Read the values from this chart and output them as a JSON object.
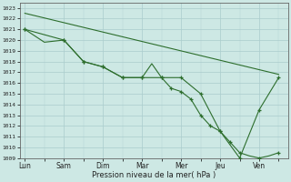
{
  "xlabel": "Pression niveau de la mer( hPa )",
  "bg_color": "#cde8e4",
  "grid_color": "#aacccc",
  "line_color": "#2d6e2d",
  "ylim": [
    1009,
    1023.5
  ],
  "yticks": [
    1009,
    1010,
    1011,
    1012,
    1013,
    1014,
    1015,
    1016,
    1017,
    1018,
    1019,
    1020,
    1021,
    1022,
    1023
  ],
  "day_labels": [
    "Lun",
    "Sam",
    "Dim",
    "Mar",
    "Mer",
    "Jeu",
    "Ven"
  ],
  "day_positions": [
    0,
    4,
    8,
    12,
    16,
    20,
    24
  ],
  "xlim": [
    -0.5,
    27
  ],
  "ref_line_x": [
    0,
    26
  ],
  "ref_line_y": [
    1022.5,
    1016.8
  ],
  "line1_x": [
    0,
    2,
    4,
    6,
    8,
    10,
    12,
    13,
    14,
    15,
    16,
    17,
    18,
    19,
    20,
    21,
    22,
    23,
    24,
    25,
    26
  ],
  "line1_y": [
    1021.0,
    1019.8,
    1020.0,
    1018.0,
    1017.5,
    1016.5,
    1016.5,
    1017.8,
    1016.5,
    1015.5,
    1015.2,
    1014.5,
    1013.0,
    1012.0,
    1011.5,
    1010.5,
    1009.5,
    1009.2,
    1009.0,
    1009.2,
    1009.5
  ],
  "line1_mark_x": [
    0,
    4,
    6,
    8,
    10,
    12,
    14,
    15,
    16,
    17,
    18,
    19,
    20,
    21,
    22,
    24,
    26
  ],
  "line1_mark_y": [
    1021.0,
    1020.0,
    1018.0,
    1017.5,
    1016.5,
    1016.5,
    1016.5,
    1015.5,
    1015.2,
    1014.5,
    1013.0,
    1012.0,
    1011.5,
    1010.5,
    1009.5,
    1009.0,
    1009.5
  ],
  "line2_x": [
    0,
    4,
    6,
    8,
    10,
    12,
    14,
    16,
    18,
    20,
    22,
    24,
    26
  ],
  "line2_y": [
    1021.0,
    1020.0,
    1018.0,
    1017.5,
    1016.5,
    1016.5,
    1016.5,
    1016.5,
    1015.0,
    1011.5,
    1009.0,
    1013.5,
    1016.5
  ],
  "line2_mark_x": [
    0,
    4,
    6,
    8,
    10,
    12,
    14,
    16,
    18,
    20,
    22,
    24,
    26
  ],
  "line2_mark_y": [
    1021.0,
    1020.0,
    1018.0,
    1017.5,
    1016.5,
    1016.5,
    1016.5,
    1016.5,
    1015.0,
    1011.5,
    1009.0,
    1013.5,
    1016.5
  ]
}
